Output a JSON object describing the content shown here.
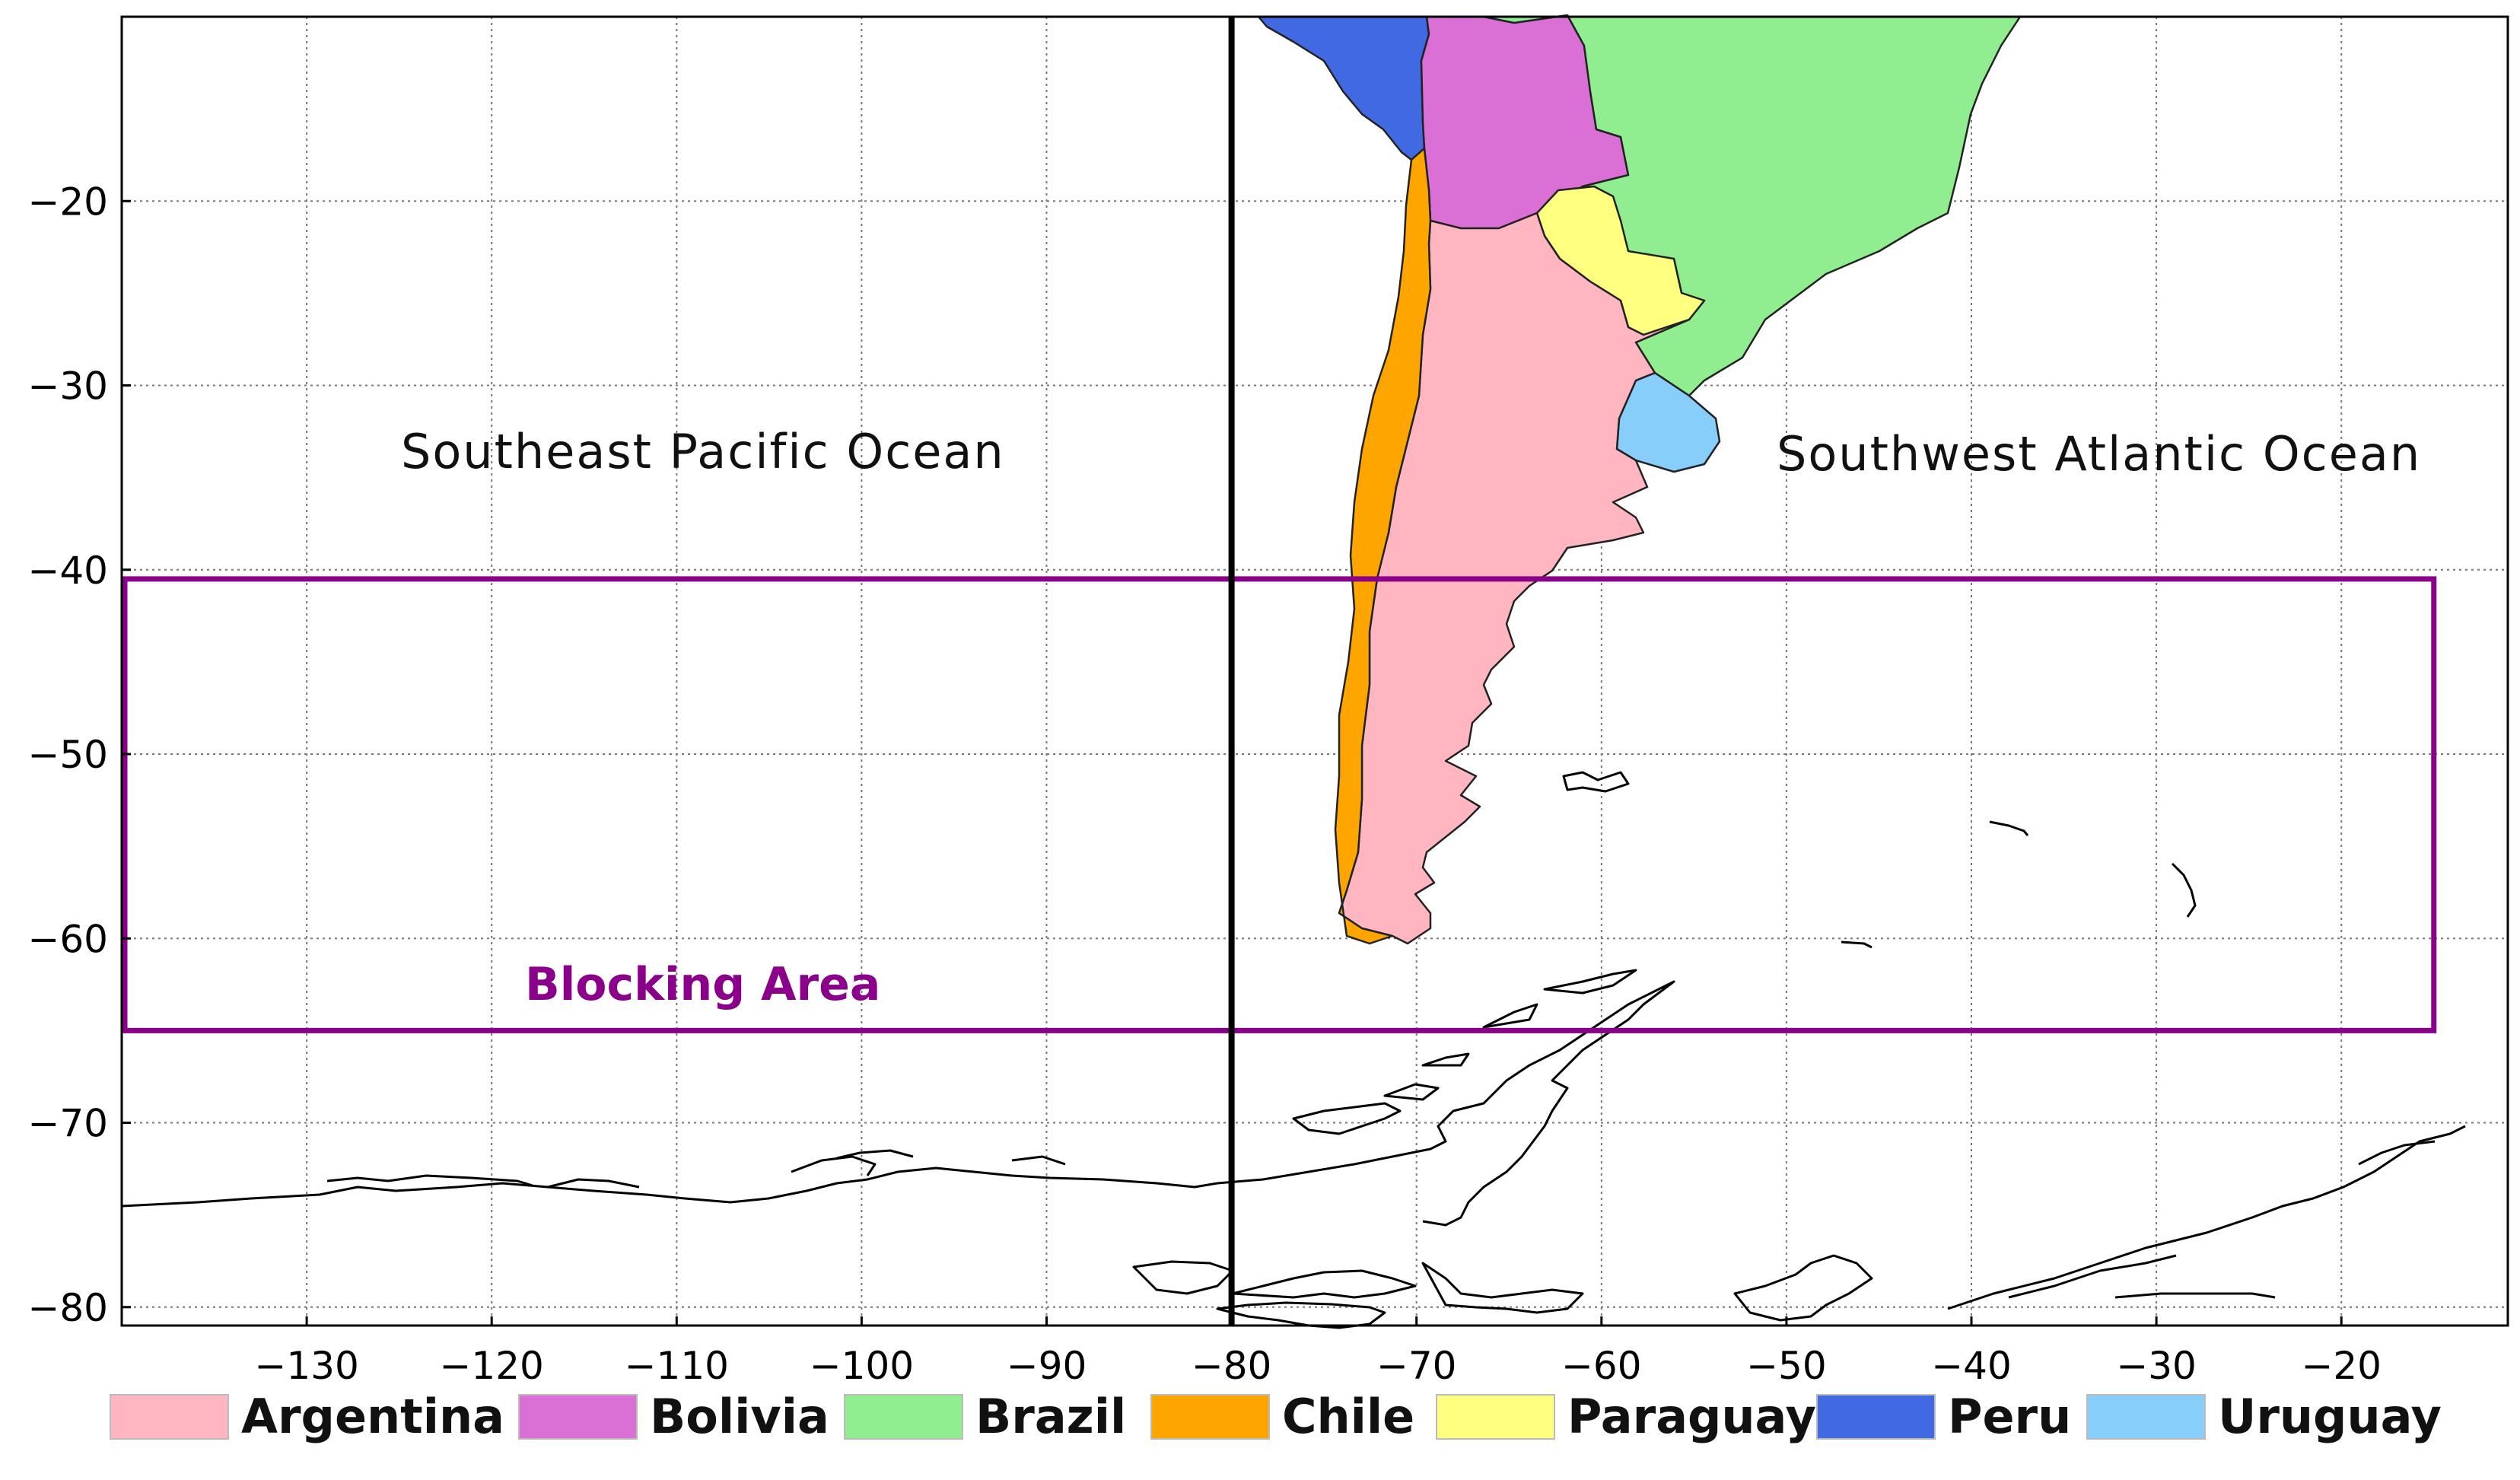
{
  "map": {
    "x_ticks": [
      "−130",
      "−120",
      "−110",
      "−100",
      "−90",
      "−80",
      "−70",
      "−60",
      "−50",
      "−40",
      "−30",
      "−20"
    ],
    "y_ticks": [
      "−20",
      "−30",
      "−40",
      "−50",
      "−60",
      "−70",
      "−80"
    ],
    "x_tick_values": [
      -130,
      -120,
      -110,
      -100,
      -90,
      -80,
      -70,
      -60,
      -50,
      -40,
      -30,
      -20
    ],
    "y_tick_values": [
      -20,
      -30,
      -40,
      -50,
      -60,
      -70,
      -80
    ],
    "xlim": [
      -140,
      -11
    ],
    "ylim": [
      -81,
      -10
    ],
    "grid": true,
    "divider_longitude": -80,
    "ocean_labels": {
      "pacific": "Southeast Pacific Ocean",
      "atlantic": "Southwest Atlantic Ocean"
    },
    "blocking_area": {
      "label": "Blocking Area",
      "lon_range": [
        -140,
        -15
      ],
      "lat_range": [
        -65,
        -40.5
      ],
      "color": "#8B008B"
    },
    "countries": [
      {
        "name": "Argentina",
        "color": "#FFB6C1"
      },
      {
        "name": "Bolivia",
        "color": "#DA70D6"
      },
      {
        "name": "Brazil",
        "color": "#90EE90"
      },
      {
        "name": "Chile",
        "color": "#FFA500"
      },
      {
        "name": "Paraguay",
        "color": "#FFFF80"
      },
      {
        "name": "Peru",
        "color": "#4169E1"
      },
      {
        "name": "Uruguay",
        "color": "#87CEFA"
      }
    ]
  }
}
